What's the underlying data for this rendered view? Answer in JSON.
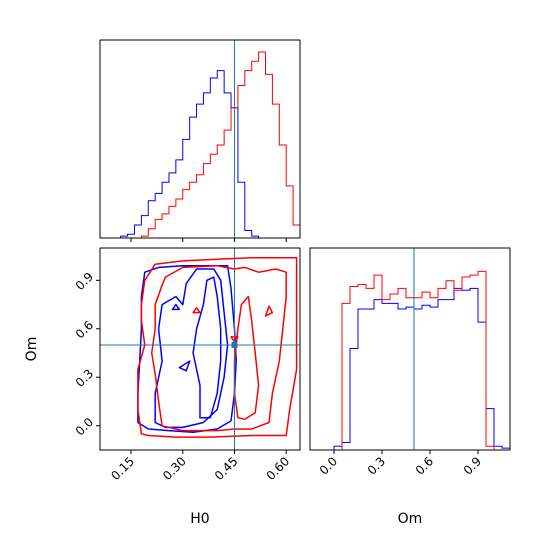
{
  "chart_data": {
    "type": "corner",
    "parameters": [
      "H0",
      "Om"
    ],
    "colors": {
      "series_a": "#0000ff",
      "series_b": "#ff0000",
      "truth": "#1f77b4"
    },
    "truths": {
      "H0": 0.45,
      "Om": 0.5
    },
    "panels": [
      {
        "id": "hist-H0",
        "type": "histogram",
        "param": "H0",
        "xlim": [
          0.06,
          0.64
        ],
        "bin_edges": [
          0.06,
          0.08,
          0.1,
          0.12,
          0.14,
          0.16,
          0.18,
          0.2,
          0.22,
          0.24,
          0.26,
          0.28,
          0.3,
          0.32,
          0.34,
          0.36,
          0.38,
          0.4,
          0.42,
          0.44,
          0.46,
          0.48,
          0.5,
          0.52,
          0.54,
          0.56,
          0.58,
          0.6,
          0.62,
          0.64
        ],
        "series": [
          {
            "color": "blue",
            "counts": [
              0,
              0,
              0,
              0.01,
              0.02,
              0.07,
              0.12,
              0.2,
              0.24,
              0.3,
              0.35,
              0.42,
              0.53,
              0.65,
              0.72,
              0.78,
              0.86,
              0.9,
              0.78,
              0.7,
              0.3,
              0.04,
              0.01,
              0,
              0,
              0,
              0,
              0,
              0
            ]
          },
          {
            "color": "red",
            "counts": [
              0,
              0,
              0,
              0,
              0,
              0,
              0.01,
              0.05,
              0.1,
              0.13,
              0.17,
              0.21,
              0.26,
              0.3,
              0.34,
              0.4,
              0.45,
              0.5,
              0.58,
              0.7,
              0.82,
              0.9,
              0.95,
              1.0,
              0.88,
              0.72,
              0.5,
              0.28,
              0.07
            ]
          }
        ]
      },
      {
        "id": "hist-Om",
        "type": "histogram",
        "param": "Om",
        "xlim": [
          -0.15,
          1.1
        ],
        "xticks": [
          "0.0",
          "0.3",
          "0.6",
          "0.9"
        ],
        "xlabel": "Om",
        "bin_edges": [
          -0.15,
          -0.1,
          -0.05,
          0.0,
          0.05,
          0.1,
          0.15,
          0.2,
          0.25,
          0.3,
          0.35,
          0.4,
          0.45,
          0.5,
          0.55,
          0.6,
          0.65,
          0.7,
          0.75,
          0.8,
          0.85,
          0.9,
          0.95,
          1.0,
          1.05,
          1.1
        ],
        "series": [
          {
            "color": "blue",
            "counts": [
              0,
              0,
              0,
              0.02,
              0.04,
              0.54,
              0.75,
              0.75,
              0.8,
              0.78,
              0.78,
              0.75,
              0.76,
              0.75,
              0.77,
              0.76,
              0.8,
              0.8,
              0.86,
              0.85,
              0.86,
              0.68,
              0.22,
              0.02,
              0.01
            ]
          },
          {
            "color": "red",
            "counts": [
              0,
              0,
              0,
              0,
              0.78,
              0.87,
              0.88,
              0.86,
              0.93,
              0.8,
              0.83,
              0.86,
              0.81,
              0.81,
              0.84,
              0.81,
              0.86,
              0.9,
              0.85,
              0.92,
              0.93,
              0.95,
              0.02,
              0,
              0
            ]
          }
        ]
      },
      {
        "id": "contour-H0-Om",
        "type": "contour",
        "xlim": [
          0.06,
          0.64
        ],
        "ylim": [
          -0.15,
          1.1
        ],
        "xticks": [
          "0.15",
          "0.30",
          "0.45",
          "0.60"
        ],
        "yticks": [
          "0.0",
          "0.3",
          "0.6",
          "0.9"
        ],
        "xlabel": "H0",
        "ylabel": "Om",
        "series": [
          {
            "color": "blue",
            "paths": [
              [
                [
                  0.17,
                  0.02
                ],
                [
                  0.17,
                  0.2
                ],
                [
                  0.175,
                  0.4
                ],
                [
                  0.18,
                  0.6
                ],
                [
                  0.18,
                  0.8
                ],
                [
                  0.19,
                  0.95
                ],
                [
                  0.23,
                  0.98
                ],
                [
                  0.3,
                  0.99
                ],
                [
                  0.37,
                  0.99
                ],
                [
                  0.43,
                  0.99
                ],
                [
                  0.44,
                  0.85
                ],
                [
                  0.45,
                  0.6
                ],
                [
                  0.455,
                  0.4
                ],
                [
                  0.45,
                  0.2
                ],
                [
                  0.44,
                  0.03
                ],
                [
                  0.4,
                  -0.02
                ],
                [
                  0.33,
                  -0.04
                ],
                [
                  0.26,
                  -0.03
                ],
                [
                  0.2,
                  -0.02
                ],
                [
                  0.17,
                  0.02
                ]
              ],
              [
                [
                  0.22,
                  0.02
                ],
                [
                  0.22,
                  0.2
                ],
                [
                  0.24,
                  0.4
                ],
                [
                  0.23,
                  0.6
                ],
                [
                  0.24,
                  0.75
                ],
                [
                  0.28,
                  0.8
                ],
                [
                  0.3,
                  0.75
                ],
                [
                  0.31,
                  0.88
                ],
                [
                  0.34,
                  0.97
                ],
                [
                  0.39,
                  0.97
                ],
                [
                  0.41,
                  0.9
                ],
                [
                  0.42,
                  0.7
                ],
                [
                  0.43,
                  0.5
                ],
                [
                  0.42,
                  0.3
                ],
                [
                  0.4,
                  0.1
                ],
                [
                  0.36,
                  0.02
                ],
                [
                  0.3,
                  -0.01
                ],
                [
                  0.25,
                  -0.01
                ],
                [
                  0.22,
                  0.02
                ]
              ],
              [
                [
                  0.35,
                  0.05
                ],
                [
                  0.35,
                  0.25
                ],
                [
                  0.33,
                  0.45
                ],
                [
                  0.34,
                  0.6
                ],
                [
                  0.36,
                  0.75
                ],
                [
                  0.37,
                  0.9
                ],
                [
                  0.39,
                  0.92
                ],
                [
                  0.4,
                  0.8
                ],
                [
                  0.41,
                  0.6
                ],
                [
                  0.41,
                  0.4
                ],
                [
                  0.4,
                  0.2
                ],
                [
                  0.38,
                  0.05
                ],
                [
                  0.35,
                  0.05
                ]
              ],
              [
                [
                  0.29,
                  0.36
                ],
                [
                  0.32,
                  0.4
                ],
                [
                  0.31,
                  0.34
                ],
                [
                  0.29,
                  0.36
                ]
              ],
              [
                [
                  0.27,
                  0.72
                ],
                [
                  0.29,
                  0.72
                ],
                [
                  0.28,
                  0.75
                ],
                [
                  0.27,
                  0.72
                ]
              ]
            ]
          },
          {
            "color": "red",
            "paths": [
              [
                [
                  0.18,
                  -0.05
                ],
                [
                  0.17,
                  0.1
                ],
                [
                  0.17,
                  0.25
                ],
                [
                  0.17,
                  0.35
                ],
                [
                  0.19,
                  0.5
                ],
                [
                  0.18,
                  0.65
                ],
                [
                  0.18,
                  0.75
                ],
                [
                  0.19,
                  0.9
                ],
                [
                  0.22,
                  1.0
                ],
                [
                  0.3,
                  1.02
                ],
                [
                  0.4,
                  1.03
                ],
                [
                  0.5,
                  1.04
                ],
                [
                  0.58,
                  1.04
                ],
                [
                  0.63,
                  1.04
                ],
                [
                  0.63,
                  0.85
                ],
                [
                  0.63,
                  0.55
                ],
                [
                  0.63,
                  0.35
                ],
                [
                  0.61,
                  0.1
                ],
                [
                  0.6,
                  -0.06
                ],
                [
                  0.5,
                  -0.06
                ],
                [
                  0.38,
                  -0.07
                ],
                [
                  0.28,
                  -0.07
                ],
                [
                  0.2,
                  -0.06
                ],
                [
                  0.18,
                  -0.05
                ]
              ],
              [
                [
                  0.24,
                  0.0
                ],
                [
                  0.23,
                  0.15
                ],
                [
                  0.22,
                  0.32
                ],
                [
                  0.21,
                  0.45
                ],
                [
                  0.22,
                  0.6
                ],
                [
                  0.22,
                  0.75
                ],
                [
                  0.24,
                  0.87
                ],
                [
                  0.25,
                  0.92
                ],
                [
                  0.3,
                  0.98
                ],
                [
                  0.4,
                  0.99
                ],
                [
                  0.45,
                  0.97
                ],
                [
                  0.48,
                  0.98
                ],
                [
                  0.52,
                  0.95
                ],
                [
                  0.57,
                  0.97
                ],
                [
                  0.6,
                  0.95
                ],
                [
                  0.6,
                  0.8
                ],
                [
                  0.59,
                  0.6
                ],
                [
                  0.58,
                  0.4
                ],
                [
                  0.56,
                  0.2
                ],
                [
                  0.55,
                  0.02
                ],
                [
                  0.5,
                  -0.02
                ],
                [
                  0.45,
                  -0.02
                ],
                [
                  0.4,
                  -0.03
                ],
                [
                  0.3,
                  -0.03
                ],
                [
                  0.24,
                  0.0
                ]
              ],
              [
                [
                  0.46,
                  0.05
                ],
                [
                  0.45,
                  0.2
                ],
                [
                  0.45,
                  0.4
                ],
                [
                  0.46,
                  0.6
                ],
                [
                  0.47,
                  0.75
                ],
                [
                  0.49,
                  0.8
                ],
                [
                  0.5,
                  0.65
                ],
                [
                  0.51,
                  0.45
                ],
                [
                  0.52,
                  0.25
                ],
                [
                  0.51,
                  0.08
                ],
                [
                  0.48,
                  0.04
                ],
                [
                  0.46,
                  0.05
                ]
              ],
              [
                [
                  0.44,
                  0.55
                ],
                [
                  0.46,
                  0.55
                ],
                [
                  0.45,
                  0.52
                ],
                [
                  0.44,
                  0.55
                ]
              ],
              [
                [
                  0.33,
                  0.7
                ],
                [
                  0.35,
                  0.7
                ],
                [
                  0.34,
                  0.73
                ],
                [
                  0.33,
                  0.7
                ]
              ],
              [
                [
                  0.54,
                  0.68
                ],
                [
                  0.56,
                  0.7
                ],
                [
                  0.55,
                  0.74
                ],
                [
                  0.54,
                  0.68
                ]
              ]
            ]
          }
        ]
      }
    ]
  }
}
